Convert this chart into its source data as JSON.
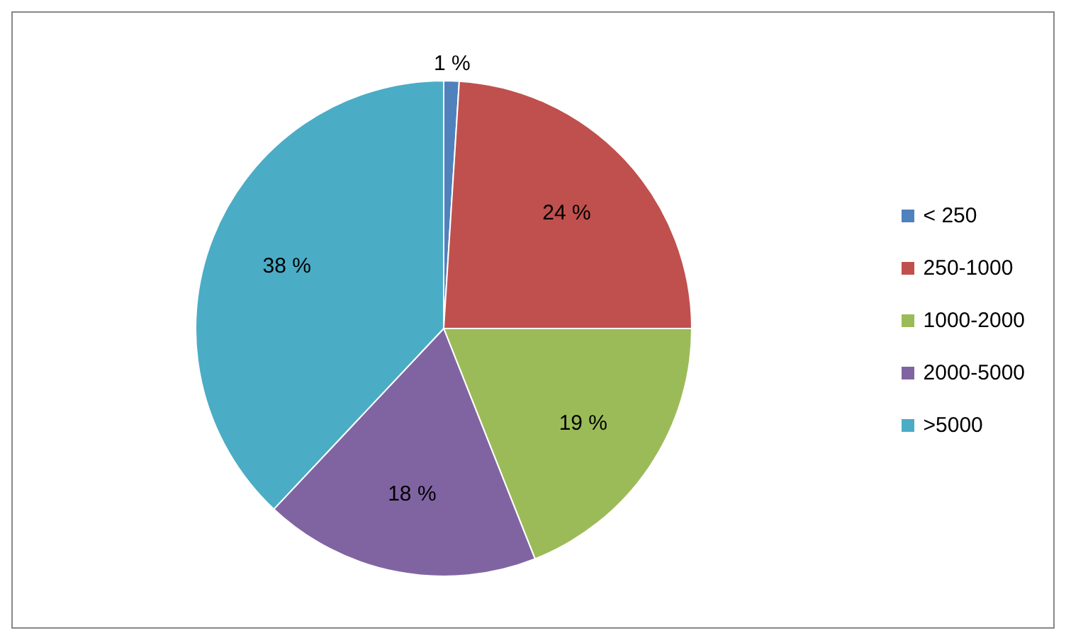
{
  "chart_data": {
    "type": "pie",
    "categories": [
      "< 250",
      "250-1000",
      "1000-2000",
      "2000-5000",
      ">5000"
    ],
    "values": [
      1,
      24,
      19,
      18,
      38
    ],
    "colors": [
      "#4f81bd",
      "#c0504d",
      "#9bbb59",
      "#8064a2",
      "#4bacc6"
    ],
    "value_labels": [
      "1 %",
      "24 %",
      "19 %",
      "18 %",
      "38 %"
    ],
    "legend": "right"
  }
}
